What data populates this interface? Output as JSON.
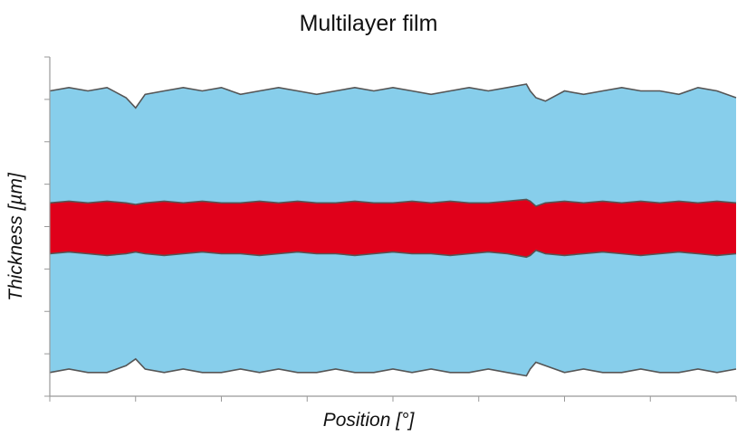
{
  "chart_data": {
    "type": "area",
    "title": "Multilayer film",
    "xlabel": "Position [°]",
    "ylabel": "Thickness [µm]",
    "xlim": [
      0,
      360
    ],
    "ylim": [
      0,
      100
    ],
    "grid": false,
    "x_tick_count": 8,
    "y_tick_count": 8,
    "x": [
      0,
      10,
      20,
      30,
      40,
      45,
      50,
      60,
      70,
      80,
      90,
      100,
      110,
      120,
      130,
      140,
      150,
      160,
      170,
      180,
      190,
      200,
      210,
      220,
      230,
      240,
      250,
      252,
      255,
      260,
      270,
      280,
      290,
      300,
      310,
      320,
      330,
      340,
      350,
      360
    ],
    "series": [
      {
        "color": "#87ceeb",
        "upper": [
          90,
          91,
          90,
          91,
          88,
          85,
          89,
          90,
          91,
          90,
          91,
          89,
          90,
          91,
          90,
          89,
          90,
          91,
          90,
          91,
          90,
          89,
          90,
          91,
          90,
          91,
          92,
          90,
          88,
          87,
          90,
          89,
          90,
          91,
          90,
          90,
          89,
          91,
          90,
          88
        ],
        "lower": [
          7,
          8,
          7,
          7,
          9,
          11,
          8,
          7,
          8,
          7,
          7,
          8,
          7,
          8,
          7,
          7,
          8,
          7,
          7,
          8,
          7,
          8,
          7,
          7,
          8,
          7,
          6,
          8,
          10,
          9,
          7,
          8,
          7,
          7,
          8,
          7,
          7,
          8,
          7,
          8
        ]
      },
      {
        "color": "#e0001a",
        "upper": [
          57,
          57.5,
          57,
          57.5,
          57,
          56.5,
          57,
          57.5,
          57,
          57.5,
          57,
          57,
          57.5,
          57,
          57.5,
          57,
          57,
          57.5,
          57,
          57,
          57.5,
          57,
          57.5,
          57,
          57,
          57.5,
          58,
          57.5,
          56,
          57,
          57.5,
          57,
          57.5,
          57,
          57.5,
          57,
          57.5,
          57,
          57.5,
          57
        ],
        "lower": [
          42,
          42.5,
          42,
          41.5,
          42,
          42.5,
          42,
          41.5,
          42,
          42.5,
          42,
          42,
          41.5,
          42,
          42.5,
          42,
          42,
          41.5,
          42,
          42.5,
          42,
          42,
          41.5,
          42,
          42.5,
          42,
          41,
          41.5,
          43,
          42,
          41.5,
          42,
          42.5,
          42,
          41.5,
          42,
          42.5,
          42,
          41.5,
          42
        ]
      }
    ]
  }
}
